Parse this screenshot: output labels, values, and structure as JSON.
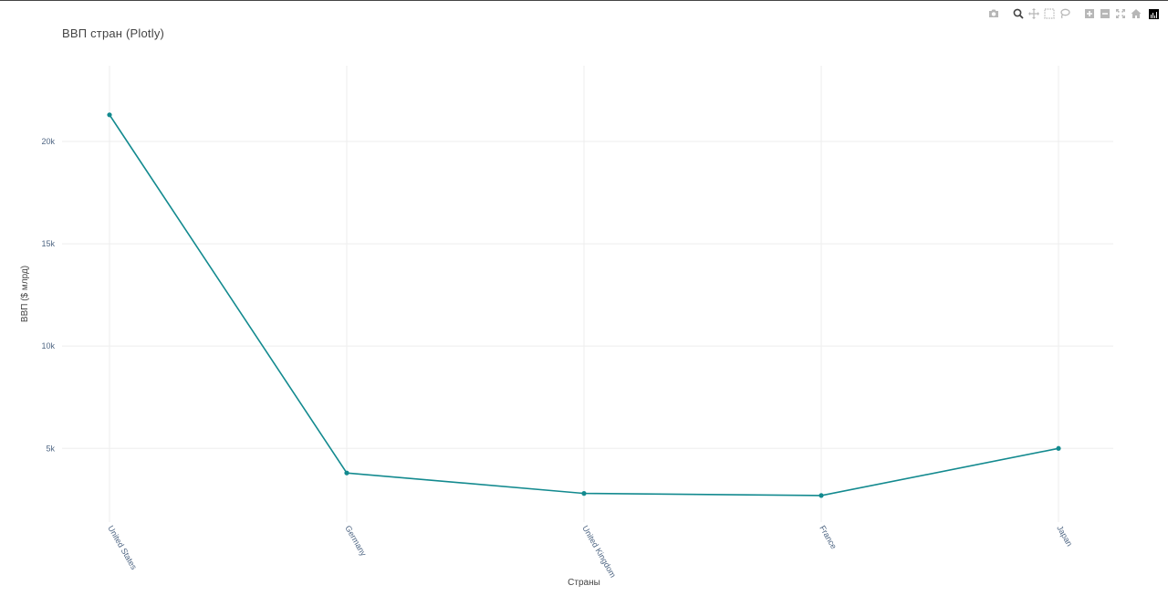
{
  "title": "ВВП стран (Plotly)",
  "modebar": {
    "icons": [
      "camera-icon",
      "zoom-icon",
      "pan-icon",
      "box-select-icon",
      "lasso-select-icon",
      "zoom-in-icon",
      "zoom-out-icon",
      "autoscale-icon",
      "home-icon",
      "plotly-logo-icon"
    ]
  },
  "colors": {
    "line": "#138a8f",
    "grid": "#eeeeee",
    "tick": "#506784"
  },
  "chart_data": {
    "type": "line",
    "title": "ВВП стран (Plotly)",
    "xlabel": "Страны",
    "ylabel": "ВВП ($ млрд)",
    "categories": [
      "United States",
      "Germany",
      "United Kingdom",
      "France",
      "Japan"
    ],
    "values": [
      21300,
      3800,
      2800,
      2700,
      5000
    ],
    "ylim": [
      1400,
      23700
    ],
    "yticks": [
      5000,
      10000,
      15000,
      20000
    ],
    "ytick_labels": [
      "5k",
      "10k",
      "15k",
      "20k"
    ],
    "mode": "lines+markers",
    "grid": true,
    "legend": "none"
  }
}
